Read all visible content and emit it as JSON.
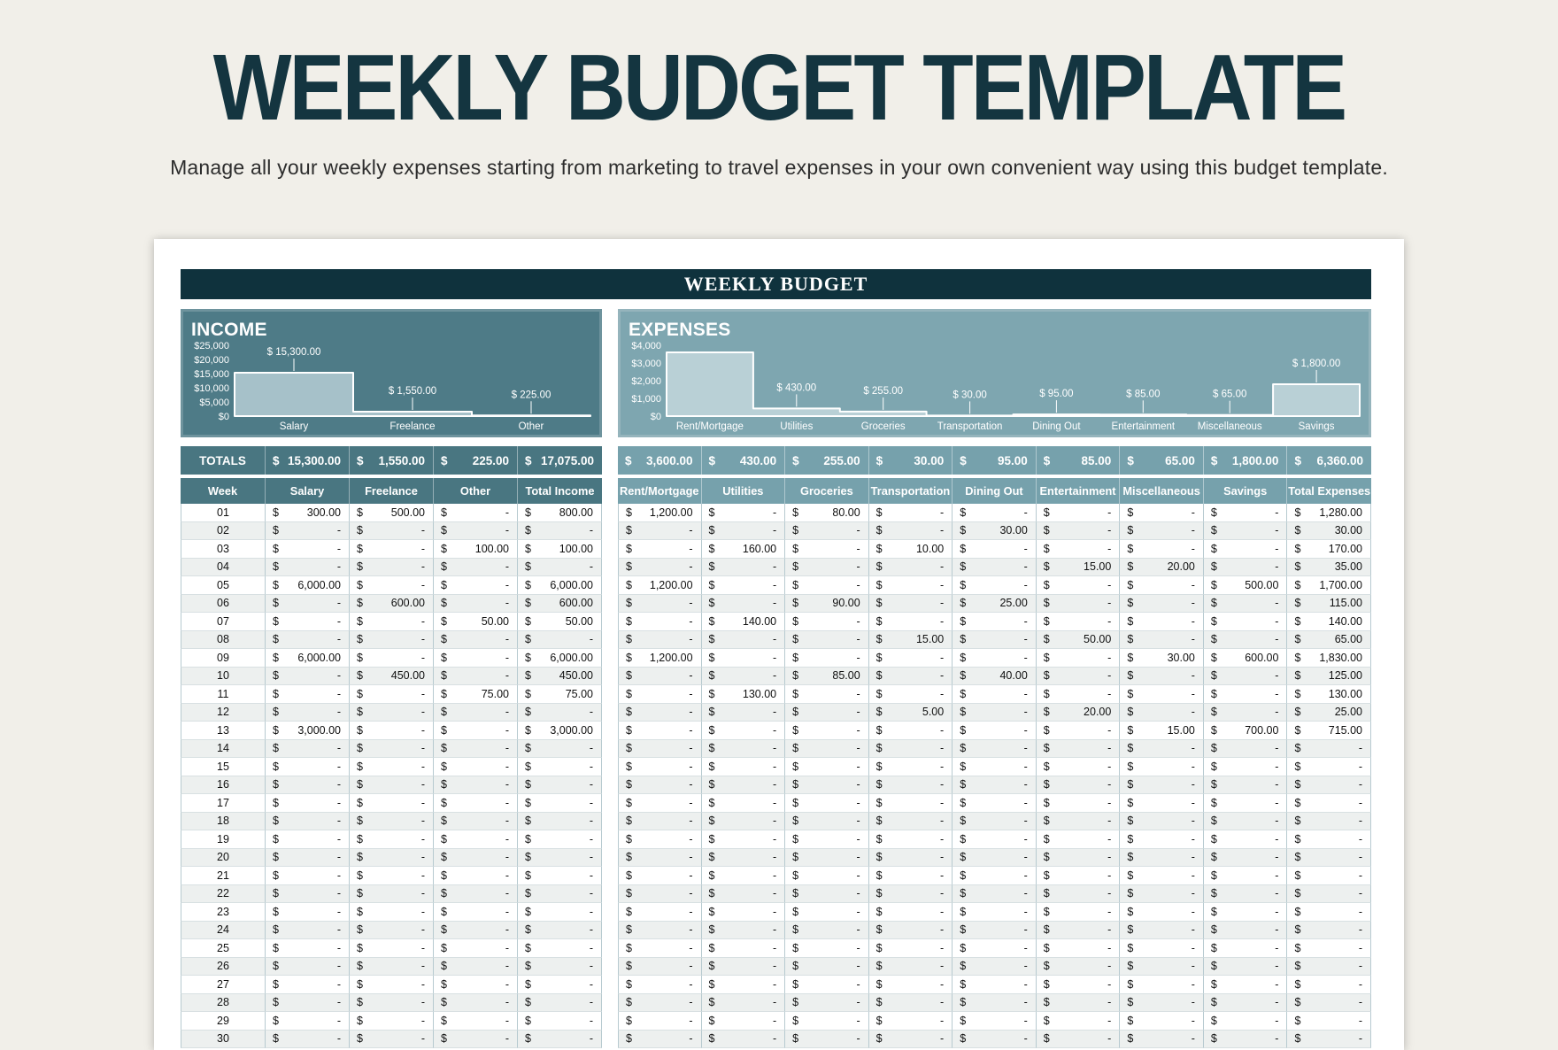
{
  "page": {
    "title": "WEEKLY BUDGET TEMPLATE",
    "subtitle": "Manage all your weekly expenses starting from marketing to travel expenses in your own convenient way using this budget template.",
    "sheet_banner": "WEEKLY BUDGET"
  },
  "colors": {
    "page-bg": "#f1efe9",
    "title-color": "#143540",
    "banner-bg": "#0f323d",
    "income-panel-bg": "#4e7b87",
    "income-panel-border": "#6e939d",
    "income-bar-fill": "#a6c1c9",
    "income-head-bg": "#497681",
    "expense-panel-bg": "#7ea6b0",
    "expense-panel-border": "#95b4bc",
    "expense-bar-fill": "#b9d0d6",
    "expense-head-bg": "#76a1ac",
    "row-alt-bg": "#edf0ef",
    "cell-border": "#b7cad0",
    "cell-hborder": "#d8e0e2",
    "chart-line": "#ffffff"
  },
  "chart_data": [
    {
      "type": "bar",
      "title": "INCOME",
      "categories": [
        "Salary",
        "Freelance",
        "Other"
      ],
      "values": [
        15300,
        1550,
        225
      ],
      "data_labels": [
        "$ 15,300.00",
        "$ 1,550.00",
        "$ 225.00"
      ],
      "ylim": [
        0,
        25000
      ],
      "ytick_values": [
        25000,
        20000,
        15000,
        10000,
        5000,
        0
      ],
      "ytick_labels": [
        "$25,000",
        "$20,000",
        "$15,000",
        "$10,000",
        "$5,000",
        "$0"
      ],
      "grid": false,
      "legend": false
    },
    {
      "type": "bar",
      "title": "EXPENSES",
      "categories": [
        "Rent/Mortgage",
        "Utilities",
        "Groceries",
        "Transportation",
        "Dining Out",
        "Entertainment",
        "Miscellaneous",
        "Savings"
      ],
      "values": [
        3600,
        430,
        255,
        30,
        95,
        85,
        65,
        1800
      ],
      "data_labels": [
        "",
        "$ 430.00",
        "$ 255.00",
        "$ 30.00",
        "$ 95.00",
        "$ 85.00",
        "$ 65.00",
        "$ 1,800.00"
      ],
      "ylim": [
        0,
        4000
      ],
      "ytick_values": [
        4000,
        3000,
        2000,
        1000,
        0
      ],
      "ytick_labels": [
        "$4,000",
        "$3,000",
        "$2,000",
        "$1,000",
        "$0"
      ],
      "grid": false,
      "legend": false
    }
  ],
  "income_table": {
    "totals_label": "TOTALS",
    "totals": [
      "15,300.00",
      "1,550.00",
      "225.00",
      "17,075.00"
    ],
    "headers": [
      "Week",
      "Salary",
      "Freelance",
      "Other",
      "Total Income"
    ],
    "rows": [
      [
        "01",
        "300.00",
        "500.00",
        "-",
        "800.00"
      ],
      [
        "02",
        "-",
        "-",
        "-",
        "-"
      ],
      [
        "03",
        "-",
        "-",
        "100.00",
        "100.00"
      ],
      [
        "04",
        "-",
        "-",
        "-",
        "-"
      ],
      [
        "05",
        "6,000.00",
        "-",
        "-",
        "6,000.00"
      ],
      [
        "06",
        "-",
        "600.00",
        "-",
        "600.00"
      ],
      [
        "07",
        "-",
        "-",
        "50.00",
        "50.00"
      ],
      [
        "08",
        "-",
        "-",
        "-",
        "-"
      ],
      [
        "09",
        "6,000.00",
        "-",
        "-",
        "6,000.00"
      ],
      [
        "10",
        "-",
        "450.00",
        "-",
        "450.00"
      ],
      [
        "11",
        "-",
        "-",
        "75.00",
        "75.00"
      ],
      [
        "12",
        "-",
        "-",
        "-",
        "-"
      ],
      [
        "13",
        "3,000.00",
        "-",
        "-",
        "3,000.00"
      ],
      [
        "14",
        "-",
        "-",
        "-",
        "-"
      ],
      [
        "15",
        "-",
        "-",
        "-",
        "-"
      ],
      [
        "16",
        "-",
        "-",
        "-",
        "-"
      ],
      [
        "17",
        "-",
        "-",
        "-",
        "-"
      ],
      [
        "18",
        "-",
        "-",
        "-",
        "-"
      ],
      [
        "19",
        "-",
        "-",
        "-",
        "-"
      ],
      [
        "20",
        "-",
        "-",
        "-",
        "-"
      ],
      [
        "21",
        "-",
        "-",
        "-",
        "-"
      ],
      [
        "22",
        "-",
        "-",
        "-",
        "-"
      ],
      [
        "23",
        "-",
        "-",
        "-",
        "-"
      ],
      [
        "24",
        "-",
        "-",
        "-",
        "-"
      ],
      [
        "25",
        "-",
        "-",
        "-",
        "-"
      ],
      [
        "26",
        "-",
        "-",
        "-",
        "-"
      ],
      [
        "27",
        "-",
        "-",
        "-",
        "-"
      ],
      [
        "28",
        "-",
        "-",
        "-",
        "-"
      ],
      [
        "29",
        "-",
        "-",
        "-",
        "-"
      ],
      [
        "30",
        "-",
        "-",
        "-",
        "-"
      ]
    ]
  },
  "expense_table": {
    "totals": [
      "3,600.00",
      "430.00",
      "255.00",
      "30.00",
      "95.00",
      "85.00",
      "65.00",
      "1,800.00",
      "6,360.00"
    ],
    "headers": [
      "Rent/Mortgage",
      "Utilities",
      "Groceries",
      "Transportation",
      "Dining Out",
      "Entertainment",
      "Miscellaneous",
      "Savings",
      "Total Expenses"
    ],
    "rows": [
      [
        "1,200.00",
        "-",
        "80.00",
        "-",
        "-",
        "-",
        "-",
        "-",
        "1,280.00"
      ],
      [
        "-",
        "-",
        "-",
        "-",
        "30.00",
        "-",
        "-",
        "-",
        "30.00"
      ],
      [
        "-",
        "160.00",
        "-",
        "10.00",
        "-",
        "-",
        "-",
        "-",
        "170.00"
      ],
      [
        "-",
        "-",
        "-",
        "-",
        "-",
        "15.00",
        "20.00",
        "-",
        "35.00"
      ],
      [
        "1,200.00",
        "-",
        "-",
        "-",
        "-",
        "-",
        "-",
        "500.00",
        "1,700.00"
      ],
      [
        "-",
        "-",
        "90.00",
        "-",
        "25.00",
        "-",
        "-",
        "-",
        "115.00"
      ],
      [
        "-",
        "140.00",
        "-",
        "-",
        "-",
        "-",
        "-",
        "-",
        "140.00"
      ],
      [
        "-",
        "-",
        "-",
        "15.00",
        "-",
        "50.00",
        "-",
        "-",
        "65.00"
      ],
      [
        "1,200.00",
        "-",
        "-",
        "-",
        "-",
        "-",
        "30.00",
        "600.00",
        "1,830.00"
      ],
      [
        "-",
        "-",
        "85.00",
        "-",
        "40.00",
        "-",
        "-",
        "-",
        "125.00"
      ],
      [
        "-",
        "130.00",
        "-",
        "-",
        "-",
        "-",
        "-",
        "-",
        "130.00"
      ],
      [
        "-",
        "-",
        "-",
        "5.00",
        "-",
        "20.00",
        "-",
        "-",
        "25.00"
      ],
      [
        "-",
        "-",
        "-",
        "-",
        "-",
        "-",
        "15.00",
        "700.00",
        "715.00"
      ],
      [
        "-",
        "-",
        "-",
        "-",
        "-",
        "-",
        "-",
        "-",
        "-"
      ],
      [
        "-",
        "-",
        "-",
        "-",
        "-",
        "-",
        "-",
        "-",
        "-"
      ],
      [
        "-",
        "-",
        "-",
        "-",
        "-",
        "-",
        "-",
        "-",
        "-"
      ],
      [
        "-",
        "-",
        "-",
        "-",
        "-",
        "-",
        "-",
        "-",
        "-"
      ],
      [
        "-",
        "-",
        "-",
        "-",
        "-",
        "-",
        "-",
        "-",
        "-"
      ],
      [
        "-",
        "-",
        "-",
        "-",
        "-",
        "-",
        "-",
        "-",
        "-"
      ],
      [
        "-",
        "-",
        "-",
        "-",
        "-",
        "-",
        "-",
        "-",
        "-"
      ],
      [
        "-",
        "-",
        "-",
        "-",
        "-",
        "-",
        "-",
        "-",
        "-"
      ],
      [
        "-",
        "-",
        "-",
        "-",
        "-",
        "-",
        "-",
        "-",
        "-"
      ],
      [
        "-",
        "-",
        "-",
        "-",
        "-",
        "-",
        "-",
        "-",
        "-"
      ],
      [
        "-",
        "-",
        "-",
        "-",
        "-",
        "-",
        "-",
        "-",
        "-"
      ],
      [
        "-",
        "-",
        "-",
        "-",
        "-",
        "-",
        "-",
        "-",
        "-"
      ],
      [
        "-",
        "-",
        "-",
        "-",
        "-",
        "-",
        "-",
        "-",
        "-"
      ],
      [
        "-",
        "-",
        "-",
        "-",
        "-",
        "-",
        "-",
        "-",
        "-"
      ],
      [
        "-",
        "-",
        "-",
        "-",
        "-",
        "-",
        "-",
        "-",
        "-"
      ],
      [
        "-",
        "-",
        "-",
        "-",
        "-",
        "-",
        "-",
        "-",
        "-"
      ],
      [
        "-",
        "-",
        "-",
        "-",
        "-",
        "-",
        "-",
        "-",
        "-"
      ]
    ]
  }
}
